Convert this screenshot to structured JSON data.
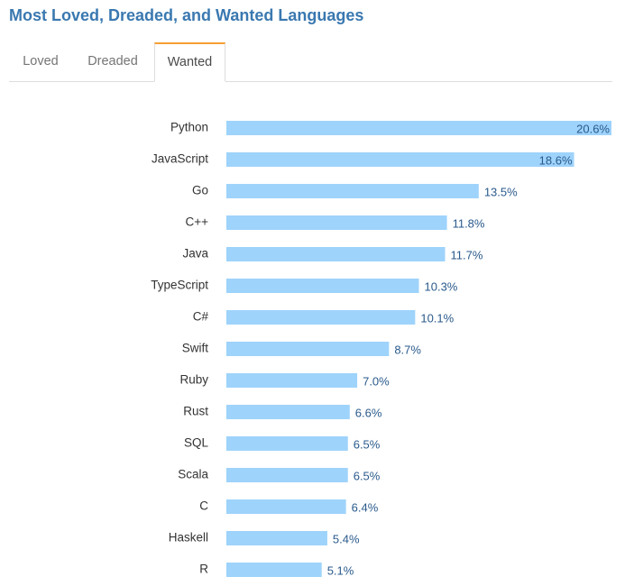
{
  "title": "Most Loved, Dreaded, and Wanted Languages",
  "tabs": [
    {
      "label": "Loved",
      "active": false
    },
    {
      "label": "Dreaded",
      "active": false
    },
    {
      "label": "Wanted",
      "active": true
    }
  ],
  "colors": {
    "title": "#3a78b0",
    "bar": "#9ed3fb",
    "value_label": "#2a5a8c",
    "active_tab_accent": "#f5a033"
  },
  "chart_data": {
    "type": "bar",
    "orientation": "horizontal",
    "categories": [
      "Python",
      "JavaScript",
      "Go",
      "C++",
      "Java",
      "TypeScript",
      "C#",
      "Swift",
      "Ruby",
      "Rust",
      "SQL",
      "Scala",
      "C",
      "Haskell",
      "R"
    ],
    "values": [
      20.6,
      18.6,
      13.5,
      11.8,
      11.7,
      10.3,
      10.1,
      8.7,
      7.0,
      6.6,
      6.5,
      6.5,
      6.4,
      5.4,
      5.1
    ],
    "value_labels": [
      "20.6%",
      "18.6%",
      "13.5%",
      "11.8%",
      "11.7%",
      "10.3%",
      "10.1%",
      "8.7%",
      "7.0%",
      "6.6%",
      "6.5%",
      "6.5%",
      "6.4%",
      "5.4%",
      "5.1%"
    ],
    "unit": "%",
    "xlim": [
      0,
      20.6
    ],
    "grid": false,
    "legend": false
  }
}
